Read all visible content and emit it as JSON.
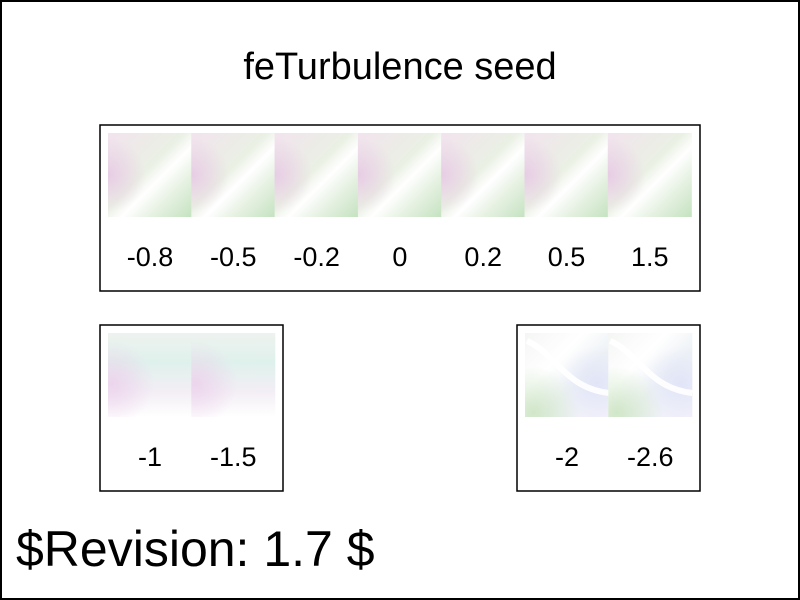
{
  "title": "feTurbulence seed",
  "revision": "$Revision: 1.7 $",
  "groups": [
    {
      "name": "top",
      "seeds": [
        "-0.8",
        "-0.5",
        "-0.2",
        "0",
        "0.2",
        "0.5",
        "1.5"
      ],
      "pattern": "A"
    },
    {
      "name": "bottom-left",
      "seeds": [
        "-1",
        "-1.5"
      ],
      "pattern": "B"
    },
    {
      "name": "bottom-right",
      "seeds": [
        "-2",
        "-2.6"
      ],
      "pattern": "C"
    }
  ]
}
